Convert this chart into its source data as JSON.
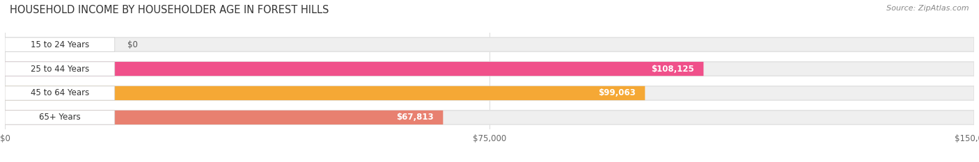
{
  "title": "HOUSEHOLD INCOME BY HOUSEHOLDER AGE IN FOREST HILLS",
  "source": "Source: ZipAtlas.com",
  "categories": [
    "15 to 24 Years",
    "25 to 44 Years",
    "45 to 64 Years",
    "65+ Years"
  ],
  "values": [
    0,
    108125,
    99063,
    67813
  ],
  "bar_colors": [
    "#b8b8e8",
    "#f0508a",
    "#f5a835",
    "#e88070"
  ],
  "bar_bg_color": "#efefef",
  "label_bg_color": "#ffffff",
  "value_labels": [
    "$0",
    "$108,125",
    "$99,063",
    "$67,813"
  ],
  "x_ticks": [
    0,
    75000,
    150000
  ],
  "x_tick_labels": [
    "$0",
    "$75,000",
    "$150,000"
  ],
  "xlim": [
    0,
    150000
  ],
  "figsize": [
    14.06,
    2.33
  ],
  "dpi": 100,
  "title_fontsize": 10.5,
  "source_fontsize": 8,
  "label_fontsize": 8.5,
  "tick_fontsize": 8.5,
  "bar_height": 0.58,
  "background_color": "#ffffff",
  "grid_color": "#dddddd"
}
